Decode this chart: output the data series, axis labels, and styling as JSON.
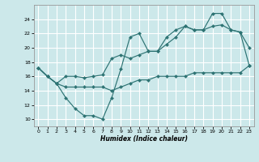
{
  "xlabel": "Humidex (Indice chaleur)",
  "bg_color": "#cce8ea",
  "grid_color": "#ffffff",
  "line_color": "#2d7373",
  "xlim": [
    -0.5,
    23.5
  ],
  "ylim": [
    9.0,
    26.0
  ],
  "xticks": [
    0,
    1,
    2,
    3,
    4,
    5,
    6,
    7,
    8,
    9,
    10,
    11,
    12,
    13,
    14,
    15,
    16,
    17,
    18,
    19,
    20,
    21,
    22,
    23
  ],
  "yticks": [
    10,
    12,
    14,
    16,
    18,
    20,
    22,
    24
  ],
  "line1_x": [
    0,
    1,
    2,
    3,
    4,
    5,
    6,
    7,
    8,
    9,
    10,
    11,
    12,
    13,
    14,
    15,
    16,
    17,
    18,
    19,
    20,
    21,
    22,
    23
  ],
  "line1_y": [
    17.2,
    16.0,
    15.0,
    13.0,
    11.5,
    10.5,
    10.5,
    10.0,
    13.0,
    17.0,
    21.5,
    22.0,
    19.5,
    19.5,
    21.5,
    22.5,
    23.0,
    22.5,
    22.5,
    24.8,
    24.8,
    22.5,
    22.2,
    20.0
  ],
  "line2_x": [
    0,
    1,
    2,
    3,
    4,
    5,
    6,
    7,
    8,
    9,
    10,
    11,
    12,
    13,
    14,
    15,
    16,
    17,
    18,
    19,
    20,
    21,
    22,
    23
  ],
  "line2_y": [
    17.2,
    16.0,
    15.0,
    16.0,
    16.0,
    15.8,
    16.0,
    16.2,
    18.5,
    19.0,
    18.5,
    19.0,
    19.5,
    19.5,
    20.5,
    21.5,
    23.0,
    22.5,
    22.5,
    23.0,
    23.2,
    22.5,
    22.2,
    17.5
  ],
  "line3_x": [
    0,
    1,
    2,
    3,
    4,
    5,
    6,
    7,
    8,
    9,
    10,
    11,
    12,
    13,
    14,
    15,
    16,
    17,
    18,
    19,
    20,
    21,
    22,
    23
  ],
  "line3_y": [
    17.2,
    16.0,
    15.0,
    14.5,
    14.5,
    14.5,
    14.5,
    14.5,
    14.0,
    14.5,
    15.0,
    15.5,
    15.5,
    16.0,
    16.0,
    16.0,
    16.0,
    16.5,
    16.5,
    16.5,
    16.5,
    16.5,
    16.5,
    17.5
  ]
}
